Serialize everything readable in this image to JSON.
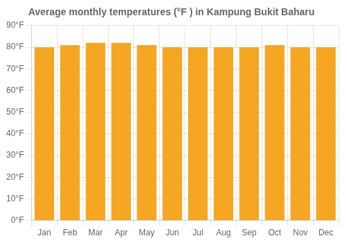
{
  "chart_data": {
    "type": "bar",
    "title": "Average monthly temperatures (°F ) in Kampung Bukit Baharu",
    "categories": [
      "Jan",
      "Feb",
      "Mar",
      "Apr",
      "May",
      "Jun",
      "Jul",
      "Aug",
      "Sep",
      "Oct",
      "Nov",
      "Dec"
    ],
    "values": [
      80,
      81,
      82,
      82,
      81,
      80,
      80,
      80,
      80,
      81,
      80,
      80
    ],
    "color": "#F5A623",
    "ylim": [
      0,
      90
    ],
    "yticks": [
      {
        "value": 0,
        "label": "0°F"
      },
      {
        "value": 10,
        "label": "10°F"
      },
      {
        "value": 20,
        "label": "20°F"
      },
      {
        "value": 30,
        "label": "30°F"
      },
      {
        "value": 40,
        "label": "40°F"
      },
      {
        "value": 50,
        "label": "50°F"
      },
      {
        "value": 60,
        "label": "60°F"
      },
      {
        "value": 70,
        "label": "70°F"
      },
      {
        "value": 80,
        "label": "80°F"
      },
      {
        "value": 90,
        "label": "90°F"
      }
    ],
    "grid": true
  }
}
